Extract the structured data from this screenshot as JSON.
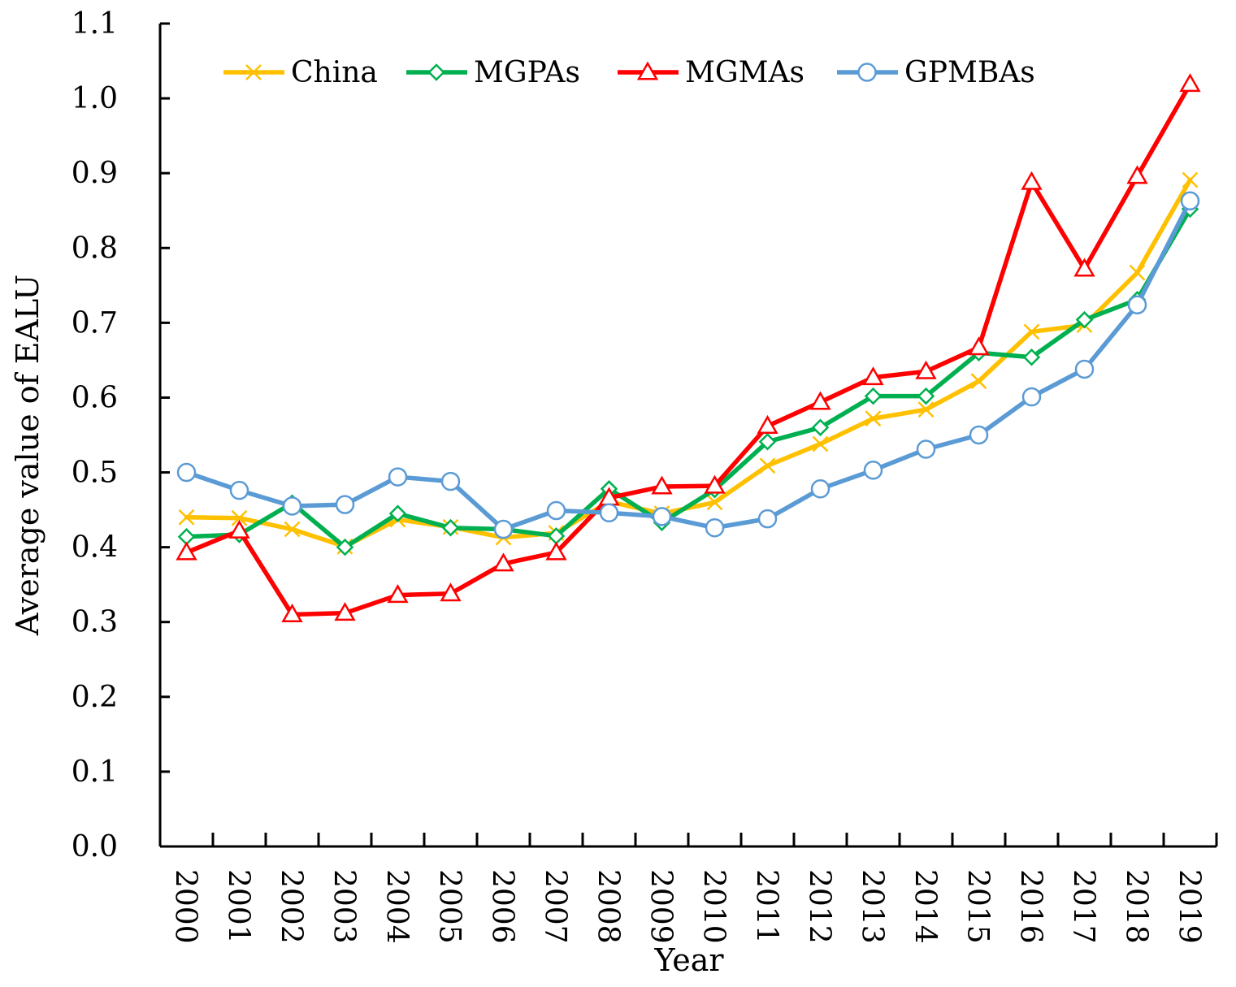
{
  "chart_data": {
    "type": "line",
    "xlabel": "Year",
    "ylabel": "Average value of EALU",
    "ylim": [
      0.0,
      1.1
    ],
    "yticks": [
      "0.0",
      "0.1",
      "0.2",
      "0.3",
      "0.4",
      "0.5",
      "0.6",
      "0.7",
      "0.8",
      "0.9",
      "1.0",
      "1.1"
    ],
    "categories": [
      "2000",
      "2001",
      "2002",
      "2003",
      "2004",
      "2005",
      "2006",
      "2007",
      "2008",
      "2009",
      "2010",
      "2011",
      "2012",
      "2013",
      "2014",
      "2015",
      "2016",
      "2017",
      "2018",
      "2019"
    ],
    "grid": false,
    "legend_position": "top",
    "series": [
      {
        "name": "China",
        "color": "#FFC000",
        "marker": "x",
        "values": [
          0.44,
          0.439,
          0.424,
          0.401,
          0.437,
          0.427,
          0.413,
          0.419,
          0.461,
          0.445,
          0.46,
          0.509,
          0.538,
          0.572,
          0.584,
          0.622,
          0.688,
          0.697,
          0.767,
          0.891
        ]
      },
      {
        "name": "MGPAs",
        "color": "#00B050",
        "marker": "diamond",
        "values": [
          0.414,
          0.417,
          0.459,
          0.4,
          0.445,
          0.426,
          0.424,
          0.415,
          0.478,
          0.433,
          0.477,
          0.541,
          0.56,
          0.602,
          0.602,
          0.66,
          0.654,
          0.704,
          0.731,
          0.852
        ]
      },
      {
        "name": "MGMAs",
        "color": "#FF0000",
        "marker": "triangle",
        "values": [
          0.393,
          0.422,
          0.31,
          0.312,
          0.336,
          0.338,
          0.378,
          0.393,
          0.466,
          0.481,
          0.482,
          0.562,
          0.594,
          0.627,
          0.635,
          0.667,
          0.888,
          0.772,
          0.896,
          1.019
        ]
      },
      {
        "name": "GPMBAs",
        "color": "#5B9BD5",
        "marker": "circle",
        "values": [
          0.5,
          0.476,
          0.455,
          0.457,
          0.494,
          0.488,
          0.424,
          0.449,
          0.446,
          0.441,
          0.426,
          0.438,
          0.478,
          0.503,
          0.531,
          0.55,
          0.601,
          0.638,
          0.724,
          0.863
        ]
      }
    ]
  }
}
